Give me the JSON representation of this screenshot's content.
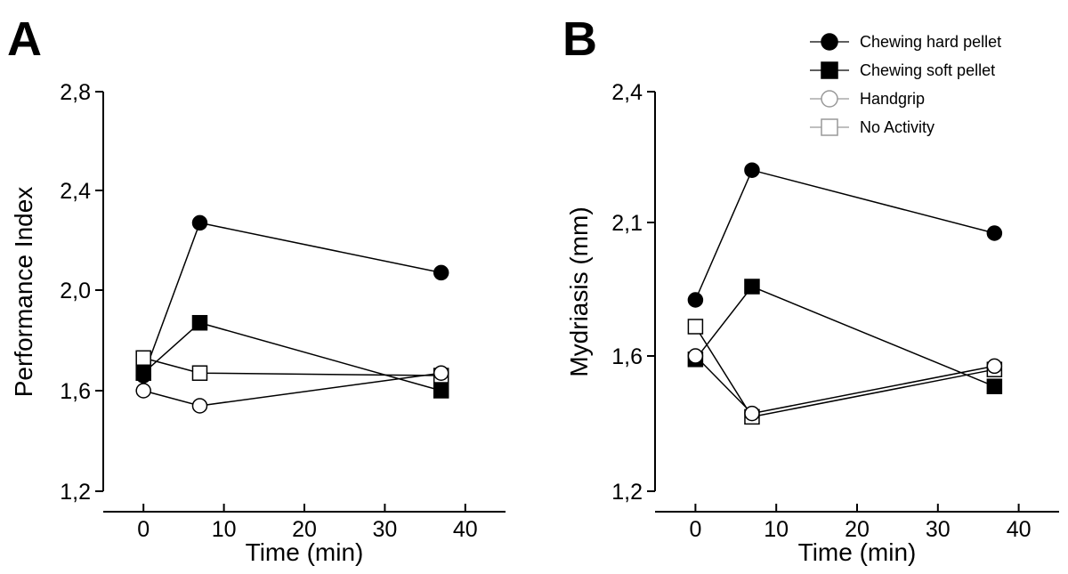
{
  "chart_data": [
    {
      "panel_label": "A",
      "type": "line",
      "title": "",
      "xlabel": "Time (min)",
      "ylabel": "Performance Index",
      "xlim": [
        -5,
        45
      ],
      "ylim": [
        1.2,
        2.8
      ],
      "xticks": [
        0,
        10,
        20,
        30,
        40
      ],
      "xtick_labels": [
        "0",
        "10",
        "20",
        "30",
        "40"
      ],
      "yticks": [
        1.2,
        1.6,
        2.0,
        2.4,
        2.8
      ],
      "ytick_labels": [
        "1,2",
        "1,6",
        "2,0",
        "2,4",
        "2,8"
      ],
      "grid": false,
      "x": [
        0,
        7,
        37
      ],
      "series": [
        {
          "name": "Chewing hard pellet",
          "values": [
            1.66,
            2.27,
            2.07
          ]
        },
        {
          "name": "Chewing soft pellet",
          "values": [
            1.67,
            1.87,
            1.6
          ]
        },
        {
          "name": "Handgrip",
          "values": [
            1.6,
            1.54,
            1.67
          ]
        },
        {
          "name": "No Activity",
          "values": [
            1.73,
            1.67,
            1.66
          ]
        }
      ]
    },
    {
      "panel_label": "B",
      "type": "line",
      "title": "",
      "xlabel": "Time (min)",
      "ylabel": "Mydriasis (mm)",
      "xlim": [
        -5,
        45
      ],
      "ylim": [
        1.2,
        2.4
      ],
      "xticks": [
        0,
        10,
        20,
        30,
        40
      ],
      "xtick_labels": [
        "0",
        "10",
        "20",
        "30",
        "40"
      ],
      "yticks": [
        1.2,
        1.6,
        2.1,
        2.4
      ],
      "ytick_labels": [
        "1,2",
        "1,6",
        "2,1",
        "2,4"
      ],
      "grid": false,
      "legend_position": "top-right",
      "x": [
        0,
        7,
        37
      ],
      "series": [
        {
          "name": "Chewing hard pellet",
          "values": [
            1.81,
            2.22,
            2.06
          ]
        },
        {
          "name": "Chewing soft pellet",
          "values": [
            1.59,
            1.86,
            1.51
          ]
        },
        {
          "name": "Handgrip",
          "values": [
            1.6,
            1.43,
            1.57
          ]
        },
        {
          "name": "No Activity",
          "values": [
            1.71,
            1.42,
            1.56
          ]
        }
      ]
    }
  ],
  "series_styles": [
    {
      "name": "Chewing hard pellet",
      "marker": "circle",
      "fill": "#000000",
      "stroke": "#000000",
      "line": "#000000"
    },
    {
      "name": "Chewing soft pellet",
      "marker": "square",
      "fill": "#000000",
      "stroke": "#000000",
      "line": "#000000"
    },
    {
      "name": "Handgrip",
      "marker": "circle",
      "fill": "#ffffff",
      "stroke": "#000000",
      "line": "#000000"
    },
    {
      "name": "No Activity",
      "marker": "square",
      "fill": "#ffffff",
      "stroke": "#000000",
      "line": "#000000"
    }
  ],
  "legend_styles": [
    {
      "name": "Chewing hard pellet",
      "marker": "circle",
      "fill": "#000000",
      "stroke": "#000000",
      "line": "#000000"
    },
    {
      "name": "Chewing soft pellet",
      "marker": "square",
      "fill": "#000000",
      "stroke": "#000000",
      "line": "#000000"
    },
    {
      "name": "Handgrip",
      "marker": "circle",
      "fill": "#ffffff",
      "stroke": "#999999",
      "line": "#999999"
    },
    {
      "name": "No Activity",
      "marker": "square",
      "fill": "#ffffff",
      "stroke": "#999999",
      "line": "#999999"
    }
  ]
}
